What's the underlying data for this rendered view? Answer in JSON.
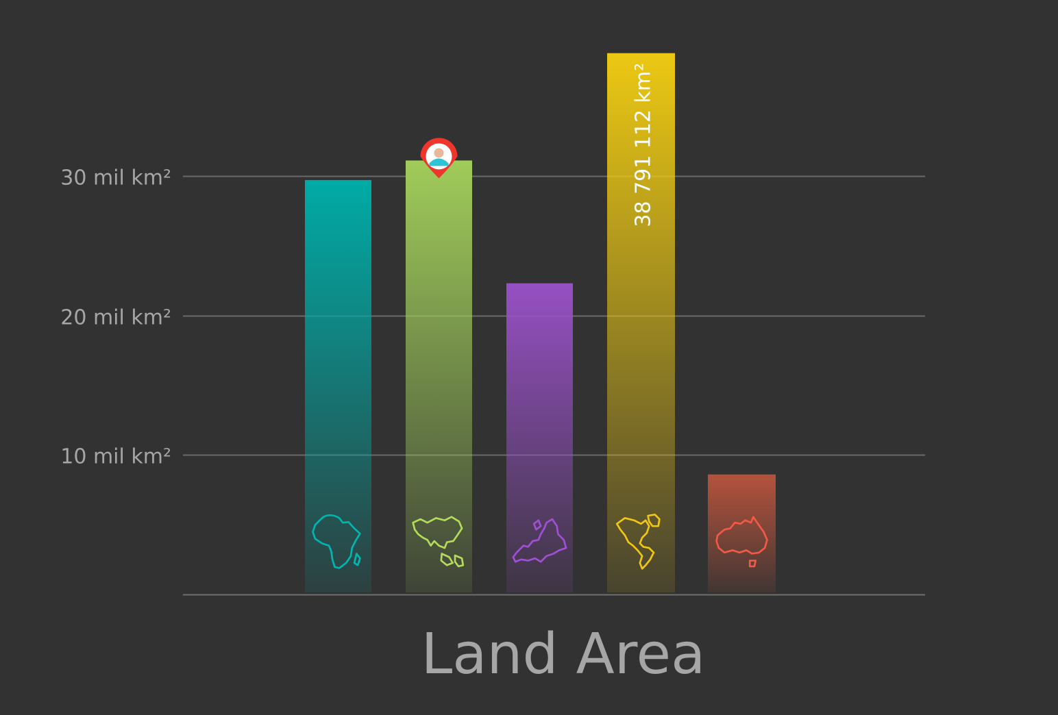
{
  "chart_data": {
    "type": "bar",
    "title": "Land Area",
    "ylim": [
      0,
      40000000
    ],
    "yticks": [
      {
        "value": 10000000,
        "label": "10 mil km²"
      },
      {
        "value": 20000000,
        "label": "20 mil km²"
      },
      {
        "value": 30000000,
        "label": "30 mil km²"
      }
    ],
    "grid": true,
    "legend": "none",
    "bars": [
      {
        "value": 29700000,
        "color": "#00aba6",
        "icon": "africa-icon"
      },
      {
        "value": 31100000,
        "color": "#a0cc5a",
        "icon": "asia-icon",
        "marker": "location-pin-avatar-icon"
      },
      {
        "value": 22300000,
        "color": "#9650c3",
        "icon": "europe-icon"
      },
      {
        "value": 38791112,
        "color": "#ecc813",
        "icon": "americas-icon",
        "data_label": "38 791 112 km²"
      },
      {
        "value": 8600000,
        "color": "#b5533c",
        "icon": "australia-icon"
      }
    ],
    "icon_colors": {
      "africa-icon": "#00b6b0",
      "asia-icon": "#b4dc5a",
      "europe-icon": "#a050d2",
      "americas-icon": "#f0c814",
      "australia-icon": "#f05a46"
    },
    "marker_colors": {
      "pin": "#f0362c",
      "avatar_face": "#e8b89a",
      "avatar_shirt": "#2ec4d6"
    }
  }
}
